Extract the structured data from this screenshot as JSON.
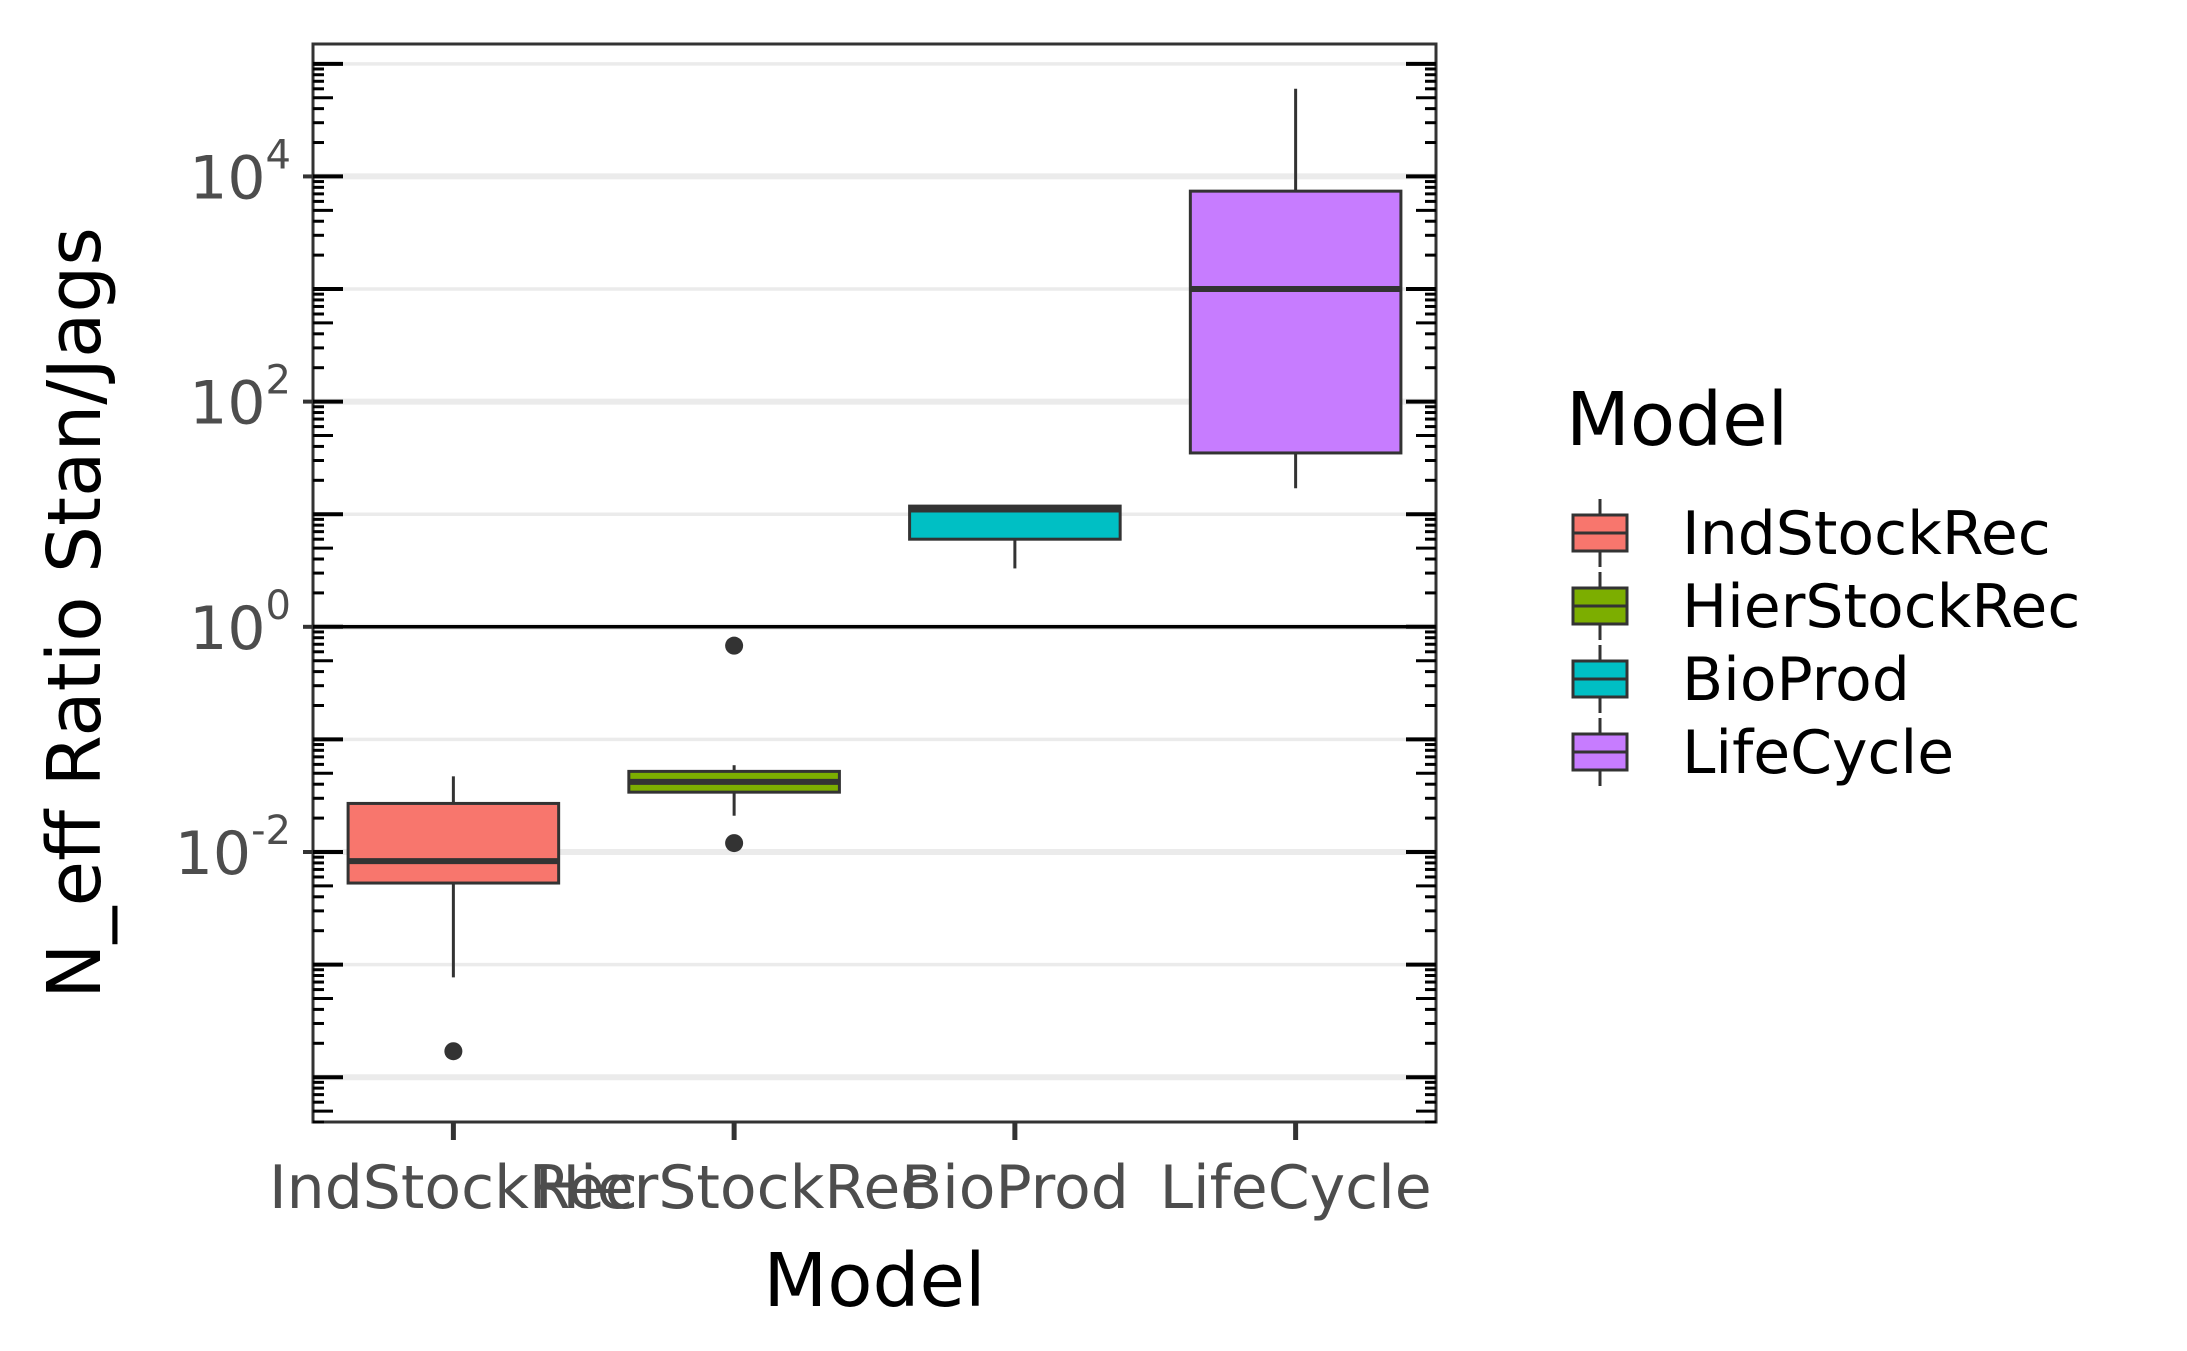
{
  "chart_data": {
    "type": "box",
    "xlabel": "Model",
    "ylabel": "N_eff Ratio Stan/Jags",
    "y_scale": "log10",
    "ylim": [
      4e-05,
      150000
    ],
    "reference_line": 1,
    "y_ticks": [
      {
        "base": "10",
        "exp": "-2",
        "value": 0.01
      },
      {
        "base": "10",
        "exp": "0",
        "value": 1
      },
      {
        "base": "10",
        "exp": "2",
        "value": 100
      },
      {
        "base": "10",
        "exp": "4",
        "value": 10000
      }
    ],
    "categories": [
      "IndStockRec",
      "HierStockRec",
      "BioProd",
      "LifeCycle"
    ],
    "series": [
      {
        "name": "IndStockRec",
        "color": "#F8766D",
        "min": 0.00077,
        "q1": 0.0053,
        "median": 0.0083,
        "q3": 0.027,
        "max": 0.047,
        "outliers": [
          0.00017
        ]
      },
      {
        "name": "HierStockRec",
        "color": "#7CAE00",
        "min": 0.021,
        "q1": 0.034,
        "median": 0.042,
        "q3": 0.052,
        "max": 0.059,
        "outliers": [
          0.68,
          0.012
        ]
      },
      {
        "name": "BioProd",
        "color": "#00BFC4",
        "min": 3.3,
        "q1": 6.0,
        "median": 11.0,
        "q3": 11.8,
        "max": 11.8,
        "outliers": []
      },
      {
        "name": "LifeCycle",
        "color": "#C77CFF",
        "min": 17.0,
        "q1": 35.0,
        "median": 1000.0,
        "q3": 7400.0,
        "max": 60000.0,
        "outliers": []
      }
    ],
    "legend": {
      "title": "Model",
      "position": "right"
    },
    "grid": true
  }
}
